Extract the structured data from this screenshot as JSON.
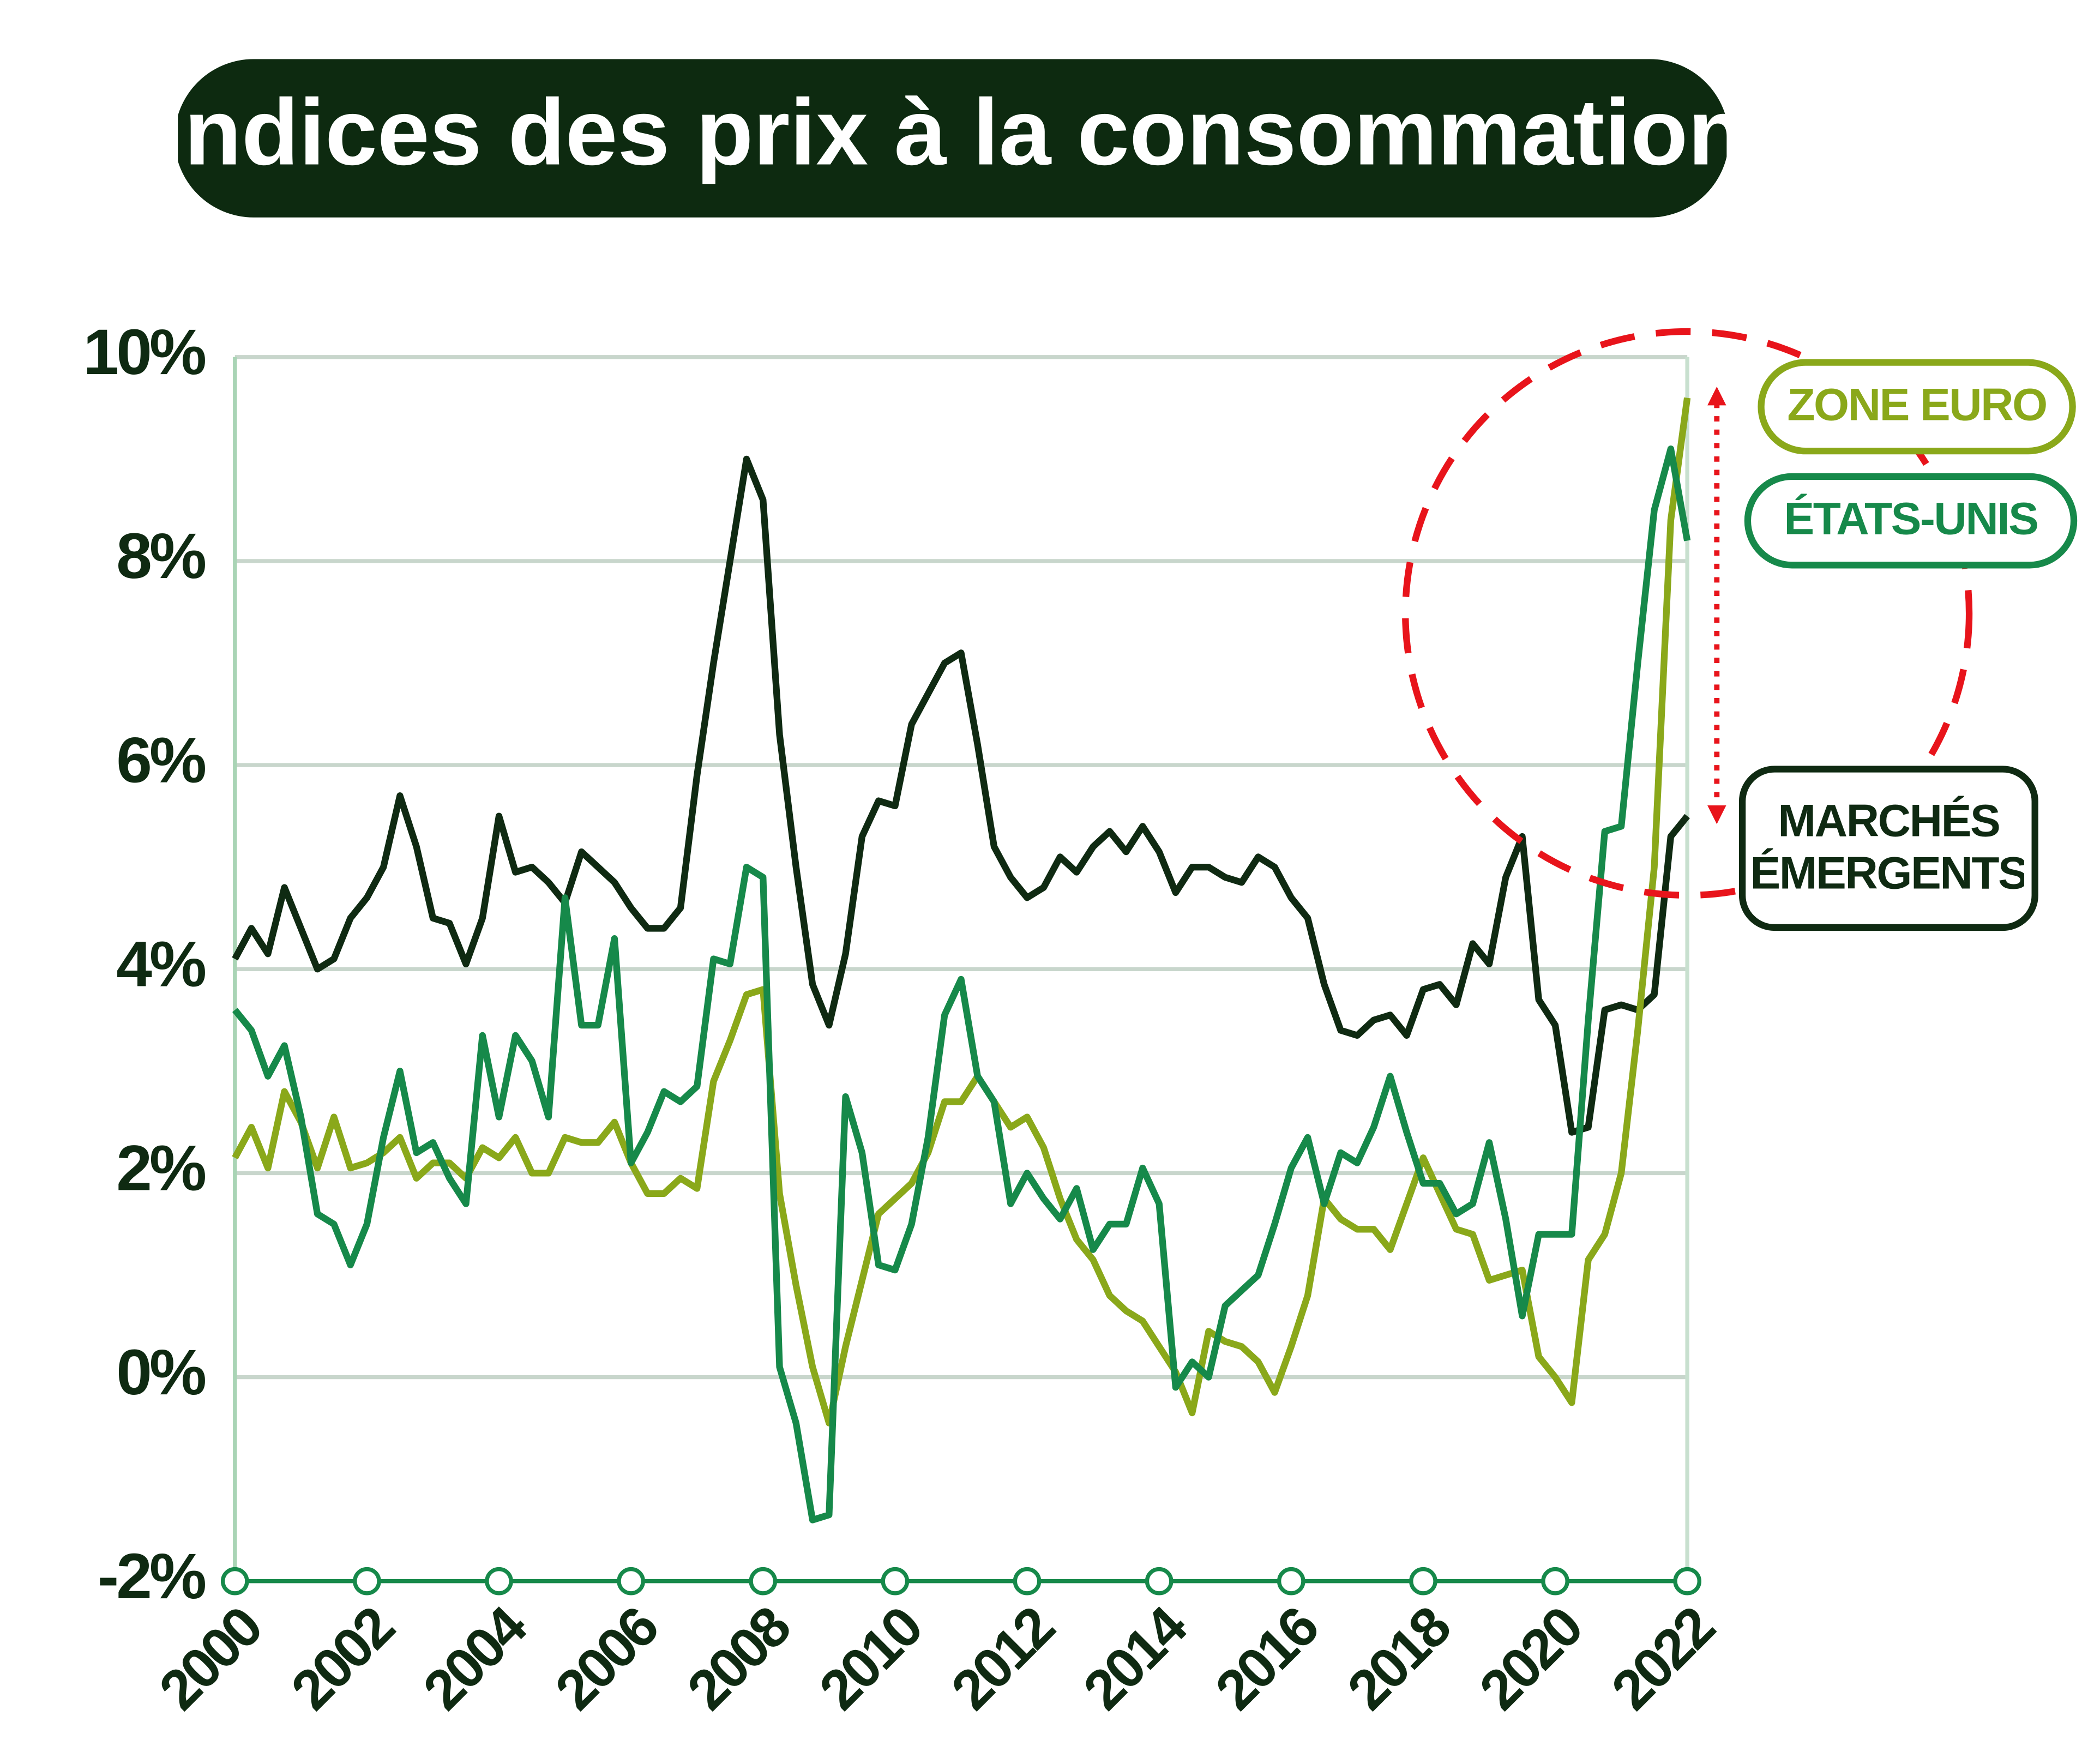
{
  "chart_data": {
    "type": "line",
    "title": "Indices des prix à la consommation",
    "x": [
      2000,
      2000.25,
      2000.5,
      2000.75,
      2001,
      2001.25,
      2001.5,
      2001.75,
      2002,
      2002.25,
      2002.5,
      2002.75,
      2003,
      2003.25,
      2003.5,
      2003.75,
      2004,
      2004.25,
      2004.5,
      2004.75,
      2005,
      2005.25,
      2005.5,
      2005.75,
      2006,
      2006.25,
      2006.5,
      2006.75,
      2007,
      2007.25,
      2007.5,
      2007.75,
      2008,
      2008.25,
      2008.5,
      2008.75,
      2009,
      2009.25,
      2009.5,
      2009.75,
      2010,
      2010.25,
      2010.5,
      2010.75,
      2011,
      2011.25,
      2011.5,
      2011.75,
      2012,
      2012.25,
      2012.5,
      2012.75,
      2013,
      2013.25,
      2013.5,
      2013.75,
      2014,
      2014.25,
      2014.5,
      2014.75,
      2015,
      2015.25,
      2015.5,
      2015.75,
      2016,
      2016.25,
      2016.5,
      2016.75,
      2017,
      2017.25,
      2017.5,
      2017.75,
      2018,
      2018.25,
      2018.5,
      2018.75,
      2019,
      2019.25,
      2019.5,
      2019.75,
      2020,
      2020.25,
      2020.5,
      2020.75,
      2021,
      2021.25,
      2021.5,
      2021.75,
      2022
    ],
    "series": [
      {
        "name": "MARCHÉS ÉMERGENTS",
        "color": "#0f2a12",
        "values": [
          4.1,
          4.4,
          4.15,
          4.8,
          4.4,
          4.0,
          4.1,
          4.5,
          4.7,
          5.0,
          5.7,
          5.2,
          4.5,
          4.45,
          4.05,
          4.5,
          5.5,
          4.95,
          5.0,
          4.85,
          4.65,
          5.15,
          5.0,
          4.85,
          4.6,
          4.4,
          4.4,
          4.6,
          5.9,
          7.0,
          8.0,
          9.0,
          8.6,
          6.3,
          5.0,
          3.85,
          3.45,
          4.15,
          5.3,
          5.65,
          5.6,
          6.4,
          6.7,
          7.0,
          7.1,
          6.2,
          5.2,
          4.9,
          4.7,
          4.8,
          5.1,
          4.95,
          5.2,
          5.35,
          5.15,
          5.4,
          5.15,
          4.75,
          5.0,
          5.0,
          4.9,
          4.85,
          5.1,
          5.0,
          4.7,
          4.5,
          3.85,
          3.4,
          3.35,
          3.5,
          3.55,
          3.35,
          3.8,
          3.85,
          3.65,
          4.25,
          4.05,
          4.9,
          5.3,
          3.7,
          3.45,
          2.4,
          2.45,
          3.6,
          3.65,
          3.6,
          3.75,
          5.3,
          5.5
        ]
      },
      {
        "name": "ZONE EURO",
        "color": "#8aa81a",
        "values": [
          2.15,
          2.45,
          2.05,
          2.8,
          2.5,
          2.05,
          2.55,
          2.05,
          2.1,
          2.2,
          2.35,
          1.95,
          2.1,
          2.1,
          1.95,
          2.25,
          2.15,
          2.35,
          2.0,
          2.0,
          2.35,
          2.3,
          2.3,
          2.5,
          2.1,
          1.8,
          1.8,
          1.95,
          1.85,
          2.9,
          3.3,
          3.75,
          3.8,
          1.8,
          0.9,
          0.1,
          -0.45,
          0.3,
          0.95,
          1.6,
          1.75,
          1.9,
          2.2,
          2.7,
          2.7,
          2.95,
          2.7,
          2.45,
          2.55,
          2.25,
          1.75,
          1.35,
          1.15,
          0.8,
          0.65,
          0.55,
          0.3,
          0.05,
          -0.35,
          0.45,
          0.35,
          0.3,
          0.15,
          -0.15,
          0.3,
          0.8,
          1.75,
          1.55,
          1.45,
          1.45,
          1.25,
          1.7,
          2.15,
          1.8,
          1.45,
          1.4,
          0.95,
          1.0,
          1.05,
          0.2,
          0.0,
          -0.25,
          1.15,
          1.4,
          2.0,
          3.4,
          5.0,
          8.4,
          9.6
        ]
      },
      {
        "name": "ÉTATS-UNIS",
        "color": "#16894a",
        "values": [
          3.6,
          3.4,
          2.95,
          3.25,
          2.55,
          1.6,
          1.5,
          1.1,
          1.5,
          2.35,
          3.0,
          2.2,
          2.3,
          1.95,
          1.7,
          3.35,
          2.55,
          3.35,
          3.1,
          2.55,
          4.7,
          3.45,
          3.45,
          4.3,
          2.1,
          2.4,
          2.8,
          2.7,
          2.85,
          4.1,
          4.05,
          5.0,
          4.9,
          0.1,
          -0.45,
          -1.4,
          -1.35,
          2.75,
          2.2,
          1.1,
          1.05,
          1.5,
          2.35,
          3.55,
          3.9,
          2.95,
          2.7,
          1.7,
          2.0,
          1.75,
          1.55,
          1.85,
          1.25,
          1.5,
          1.5,
          2.05,
          1.7,
          -0.1,
          0.15,
          0.0,
          0.7,
          0.85,
          1.0,
          1.5,
          2.05,
          2.35,
          1.7,
          2.2,
          2.1,
          2.45,
          2.95,
          2.4,
          1.9,
          1.9,
          1.6,
          1.7,
          2.3,
          1.55,
          0.6,
          1.4,
          1.4,
          1.4,
          3.5,
          5.35,
          5.4,
          7.0,
          8.5,
          9.1,
          8.2
        ]
      }
    ],
    "xlim": [
      2000,
      2022
    ],
    "xticks": [
      2000,
      2002,
      2004,
      2006,
      2008,
      2010,
      2012,
      2014,
      2016,
      2018,
      2020,
      2022
    ],
    "ylim": [
      -2,
      10
    ],
    "yticks": [
      {
        "value": -2,
        "label": "-2%"
      },
      {
        "value": 0,
        "label": "0%"
      },
      {
        "value": 2,
        "label": "2%"
      },
      {
        "value": 4,
        "label": "4%"
      },
      {
        "value": 6,
        "label": "6%"
      },
      {
        "value": 8,
        "label": "8%"
      },
      {
        "value": 10,
        "label": "10%"
      }
    ],
    "grid": true
  }
}
